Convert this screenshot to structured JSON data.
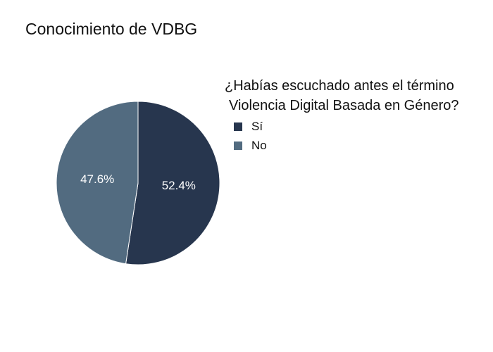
{
  "chart_data": {
    "type": "pie",
    "title": "Conocimiento de VDBG",
    "legend_title_lines": [
      "¿Habías escuchado antes el término",
      "Violencia Digital Basada en Género?"
    ],
    "legend_position": "top-right",
    "slices": [
      {
        "label": "Sí",
        "value": 52.4,
        "display": "52.4%",
        "color": "#27364e"
      },
      {
        "label": "No",
        "value": 47.6,
        "display": "47.6%",
        "color": "#526b80"
      }
    ]
  }
}
